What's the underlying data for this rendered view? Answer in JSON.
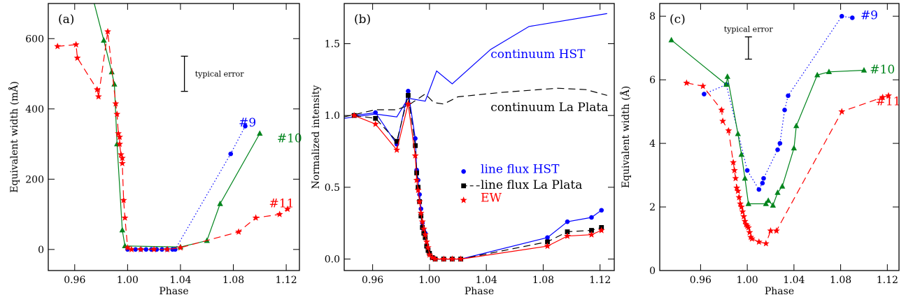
{
  "chart_data": [
    {
      "type": "scatter",
      "panel_label": "(a)",
      "xlabel": "Phase",
      "ylabel": "Equivalent width (mÅ)",
      "xlim": [
        0.94,
        1.13
      ],
      "ylim": [
        -60,
        700
      ],
      "xticks": [
        0.96,
        1.0,
        1.04,
        1.08,
        1.12
      ],
      "xtick_labels": [
        "0.96",
        "1.00",
        "1.04",
        "1.08",
        "1.12"
      ],
      "yticks": [
        0,
        200,
        400,
        600
      ],
      "ytick_labels": [
        "0",
        "200",
        "400",
        "600"
      ],
      "annotations": [
        {
          "text": "typical error",
          "x": 1.051,
          "y": 500,
          "color": "#000000"
        }
      ],
      "error_bar": {
        "x": 1.043,
        "ylow": 450,
        "yhigh": 550
      },
      "series": [
        {
          "name": "#9",
          "color": "#0000ff",
          "marker": "circle",
          "line": "dotted",
          "label_at": [
            1.084,
            350
          ],
          "x": [
            1.0,
            1.006,
            1.01,
            1.014,
            1.018,
            1.022,
            1.026,
            1.03,
            1.034,
            1.036,
            1.078,
            1.089
          ],
          "y": [
            0,
            0,
            0,
            0,
            0,
            0,
            0,
            0,
            0,
            0,
            272,
            351
          ]
        },
        {
          "name": "#10",
          "color": "#00841c",
          "marker": "triangle",
          "line": "solid",
          "label_at": [
            1.113,
            305
          ],
          "x": [
            0.972,
            0.982,
            0.988,
            0.99,
            0.992,
            0.996,
            0.998,
            1.04,
            1.06,
            1.07,
            1.1
          ],
          "y": [
            740,
            595,
            505,
            470,
            300,
            55,
            10,
            7,
            25,
            130,
            330
          ]
        },
        {
          "name": "#11",
          "color": "#ff0000",
          "marker": "star",
          "line": "dashed",
          "label_at": [
            1.107,
            120
          ],
          "x": [
            0.947,
            0.961,
            0.962,
            0.977,
            0.978,
            0.985,
            0.991,
            0.992,
            0.993,
            0.994,
            0.994,
            0.995,
            0.996,
            0.996,
            0.997,
            0.998,
            1.0,
            1.003,
            1.01,
            1.02,
            1.03,
            1.04,
            1.084,
            1.097,
            1.115,
            1.121
          ],
          "y": [
            578,
            583,
            545,
            455,
            435,
            620,
            415,
            385,
            330,
            320,
            300,
            270,
            260,
            245,
            140,
            90,
            5,
            0,
            0,
            0,
            0,
            5,
            50,
            90,
            100,
            115
          ]
        }
      ]
    },
    {
      "type": "line",
      "panel_label": "(b)",
      "xlabel": "Phase",
      "ylabel": "Normalized intensity",
      "xlim": [
        0.94,
        1.13
      ],
      "ylim": [
        -0.08,
        1.78
      ],
      "xticks": [
        0.96,
        1.0,
        1.04,
        1.08,
        1.12
      ],
      "xtick_labels": [
        "0.96",
        "1.00",
        "1.04",
        "1.08",
        "1.12"
      ],
      "yticks": [
        0.0,
        0.5,
        1.0,
        1.5
      ],
      "ytick_labels": [
        "0.0",
        "0.5",
        "1.0",
        "1.5"
      ],
      "series": [
        {
          "name": "continuum HST",
          "color": "#0000ff",
          "marker": "none",
          "line": "solid",
          "label_at": [
            1.043,
            1.4
          ],
          "x": [
            0.94,
            0.962,
            0.977,
            0.985,
            0.997,
            1.005,
            1.016,
            1.043,
            1.07,
            1.125
          ],
          "y": [
            0.98,
            1.01,
            0.99,
            1.12,
            1.1,
            1.31,
            1.22,
            1.46,
            1.62,
            1.71
          ]
        },
        {
          "name": "continuum La Plata",
          "color": "#000000",
          "marker": "none",
          "line": "dashed",
          "label_at": [
            1.043,
            1.03
          ],
          "x": [
            0.94,
            0.962,
            0.977,
            0.985,
            0.997,
            1.003,
            1.01,
            1.02,
            1.05,
            1.09,
            1.11,
            1.125
          ],
          "y": [
            0.99,
            1.04,
            1.04,
            1.07,
            1.15,
            1.09,
            1.08,
            1.13,
            1.16,
            1.19,
            1.18,
            1.14
          ]
        },
        {
          "name": "line flux HST",
          "color": "#0000ff",
          "marker": "circle",
          "line": "solid",
          "label_at": [
            1.036,
            0.6
          ],
          "legend_marker_at": [
            1.024,
            0.61
          ],
          "x": [
            0.947,
            0.962,
            0.977,
            0.985,
            0.99,
            0.991,
            0.992,
            0.993,
            0.994,
            0.995,
            0.996,
            0.997,
            0.998,
            0.999,
            1.0,
            1.002,
            1.004,
            1.01,
            1.016,
            1.022,
            1.083,
            1.097,
            1.114,
            1.121
          ],
          "y": [
            1.0,
            1.02,
            0.8,
            1.17,
            0.84,
            0.62,
            0.55,
            0.45,
            0.35,
            0.25,
            0.2,
            0.18,
            0.1,
            0.07,
            0.04,
            0.01,
            0.0,
            0.0,
            0.0,
            0.0,
            0.15,
            0.26,
            0.29,
            0.34
          ]
        },
        {
          "name": "line flux La Plata",
          "color": "#000000",
          "marker": "square",
          "line": "dashed",
          "label_at": [
            1.036,
            0.49
          ],
          "legend_marker_at": [
            1.024,
            0.51
          ],
          "x": [
            0.947,
            0.962,
            0.977,
            0.985,
            0.99,
            0.991,
            0.992,
            0.993,
            0.994,
            0.995,
            0.996,
            0.997,
            0.998,
            0.999,
            1.0,
            1.002,
            1.004,
            1.01,
            1.016,
            1.022,
            1.083,
            1.097,
            1.114,
            1.121
          ],
          "y": [
            1.0,
            0.98,
            0.82,
            1.14,
            0.79,
            0.6,
            0.5,
            0.4,
            0.3,
            0.22,
            0.18,
            0.15,
            0.09,
            0.06,
            0.04,
            0.01,
            0.0,
            0.0,
            0.0,
            0.0,
            0.12,
            0.19,
            0.2,
            0.22
          ]
        },
        {
          "name": "EW",
          "color": "#ff0000",
          "marker": "star",
          "line": "solid",
          "label_at": [
            1.036,
            0.4
          ],
          "legend_marker_at": [
            1.024,
            0.41
          ],
          "x": [
            0.947,
            0.962,
            0.977,
            0.985,
            0.99,
            0.991,
            0.992,
            0.993,
            0.994,
            0.995,
            0.996,
            0.997,
            0.998,
            0.999,
            1.0,
            1.002,
            1.004,
            1.01,
            1.016,
            1.022,
            1.083,
            1.097,
            1.114,
            1.121
          ],
          "y": [
            1.0,
            0.94,
            0.76,
            1.08,
            0.72,
            0.55,
            0.48,
            0.4,
            0.32,
            0.26,
            0.21,
            0.17,
            0.12,
            0.08,
            0.03,
            0.01,
            0.0,
            0.0,
            0.0,
            0.0,
            0.09,
            0.16,
            0.17,
            0.2
          ]
        }
      ]
    },
    {
      "type": "scatter",
      "panel_label": "(c)",
      "xlabel": "Phase",
      "ylabel": "Equivalent width (Å)",
      "xlim": [
        0.925,
        1.13
      ],
      "ylim": [
        0,
        8.4
      ],
      "xticks": [
        0.96,
        1.0,
        1.04,
        1.08,
        1.12
      ],
      "xtick_labels": [
        "0.96",
        "1.00",
        "1.04",
        "1.08",
        "1.12"
      ],
      "yticks": [
        0,
        2,
        4,
        6,
        8
      ],
      "ytick_labels": [
        "0",
        "2",
        "4",
        "6",
        "8"
      ],
      "annotations": [
        {
          "text": "typical error",
          "x": 0.98,
          "y": 7.6,
          "color": "#000000"
        }
      ],
      "error_bar": {
        "x": 1.001,
        "ylow": 6.65,
        "yhigh": 7.35
      },
      "series": [
        {
          "name": "#9",
          "color": "#0000ff",
          "marker": "circle",
          "line": "dotted",
          "label_at": [
            1.097,
            7.9
          ],
          "x": [
            0.963,
            0.982,
            1.0,
            1.01,
            1.013,
            1.014,
            1.026,
            1.028,
            1.032,
            1.035,
            1.081,
            1.09
          ],
          "y": [
            5.55,
            5.85,
            3.15,
            2.55,
            2.75,
            2.9,
            3.8,
            4.0,
            5.05,
            5.5,
            8.0,
            7.95
          ]
        },
        {
          "name": "#10",
          "color": "#00841c",
          "marker": "triangle",
          "line": "solid",
          "label_at": [
            1.105,
            6.2
          ],
          "x": [
            0.935,
            0.982,
            0.983,
            0.992,
            0.995,
            0.998,
            1.001,
            1.016,
            1.018,
            1.022,
            1.026,
            1.03,
            1.04,
            1.042,
            1.06,
            1.07,
            1.1
          ],
          "y": [
            7.25,
            5.85,
            6.1,
            4.3,
            3.65,
            2.9,
            2.1,
            2.1,
            2.2,
            2.05,
            2.45,
            2.65,
            3.85,
            4.55,
            6.15,
            6.25,
            6.3
          ]
        },
        {
          "name": "#11",
          "color": "#ff0000",
          "marker": "star",
          "line": "dashed",
          "label_at": [
            1.11,
            5.2
          ],
          "x": [
            0.948,
            0.962,
            0.978,
            0.979,
            0.984,
            0.988,
            0.989,
            0.99,
            0.991,
            0.992,
            0.993,
            0.994,
            0.995,
            0.996,
            0.997,
            0.998,
            0.999,
            1.0,
            1.001,
            1.002,
            1.003,
            1.004,
            1.01,
            1.016,
            1.02,
            1.025,
            1.081,
            1.116,
            1.121
          ],
          "y": [
            5.9,
            5.8,
            5.05,
            4.7,
            4.4,
            3.4,
            3.15,
            2.9,
            2.6,
            2.5,
            2.3,
            2.1,
            2.0,
            1.85,
            1.7,
            1.55,
            1.45,
            1.4,
            1.35,
            1.2,
            1.05,
            1.0,
            0.9,
            0.85,
            1.25,
            1.25,
            5.0,
            5.45,
            5.5
          ]
        }
      ]
    }
  ]
}
